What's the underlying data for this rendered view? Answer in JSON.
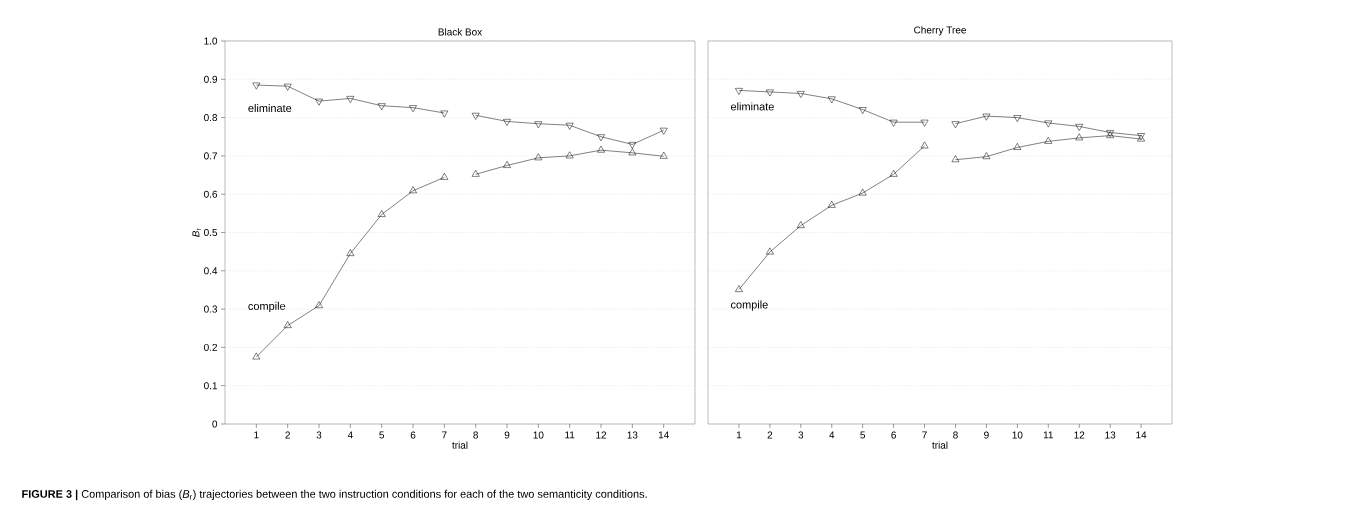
{
  "chart_data": [
    {
      "type": "line",
      "title": "Black Box",
      "xlabel": "trial",
      "ylabel": "*B*$_{r}$",
      "xlim": [
        0,
        15
      ],
      "xticks": [
        1,
        2,
        3,
        4,
        5,
        6,
        7,
        8,
        9,
        10,
        11,
        12,
        13,
        14
      ],
      "ylim": [
        0,
        1
      ],
      "yticks": [
        0,
        0.1,
        0.2,
        0.3,
        0.4,
        0.5,
        0.6,
        0.7,
        0.8,
        0.9,
        {
          "value": 1,
          "label": "1.0"
        }
      ],
      "grid": "y",
      "line_style": "solid",
      "series": [
        {
          "name": "eliminate",
          "color": "#000000",
          "marker": "triangle-down",
          "x": [
            1,
            2,
            3,
            4,
            5,
            6,
            7
          ],
          "values": [
            0.885,
            0.882,
            0.843,
            0.85,
            0.831,
            0.826,
            0.812
          ]
        },
        {
          "color": "#000000",
          "marker": "triangle-down",
          "x": [
            8,
            9,
            10,
            11,
            12,
            13,
            14
          ],
          "values": [
            0.806,
            0.79,
            0.784,
            0.78,
            0.75,
            0.73,
            0.767
          ]
        },
        {
          "name": "compile",
          "color": "#000000",
          "marker": "triangle",
          "x": [
            1,
            2,
            3,
            4,
            5,
            6,
            7
          ],
          "values": [
            0.175,
            0.257,
            0.309,
            0.445,
            0.547,
            0.609,
            0.644
          ]
        },
        {
          "color": "#000000",
          "marker": "triangle",
          "x": [
            8,
            9,
            10,
            11,
            12,
            13,
            14
          ],
          "values": [
            0.652,
            0.675,
            0.695,
            0.7,
            0.715,
            0.708,
            0.699
          ]
        }
      ],
      "annotations": [
        "**FIGURE 3 |** Comparison of bias (*B*$_{r}$) trajectories between the two instruction conditions for each of the two semanticity conditions."
      ]
    },
    {
      "type": "line",
      "title": "Cherry Tree",
      "xlabel": "trial",
      "xlim": [
        0,
        15
      ],
      "xticks": [
        1,
        2,
        3,
        4,
        5,
        6,
        7,
        8,
        9,
        10,
        11,
        12,
        13,
        14
      ],
      "ylim": [
        0,
        1
      ],
      "yticks": [
        0,
        0.1,
        0.2,
        0.3,
        0.4,
        0.5,
        0.6,
        0.7,
        0.8,
        0.9,
        1
      ],
      "grid": "y",
      "line_style": "solid",
      "tick_labels": "x",
      "series": [
        {
          "name": "eliminate",
          "color": "#000000",
          "marker": "triangle-down",
          "x": [
            1,
            2,
            3,
            4,
            5,
            6,
            7
          ],
          "values": [
            0.871,
            0.867,
            0.863,
            0.849,
            0.821,
            0.788,
            0.788
          ]
        },
        {
          "color": "#000000",
          "marker": "triangle-down",
          "x": [
            8,
            9,
            10,
            11,
            12,
            13,
            14
          ],
          "values": [
            0.784,
            0.804,
            0.8,
            0.786,
            0.777,
            0.761,
            0.753
          ]
        },
        {
          "name": "compile",
          "color": "#000000",
          "marker": "triangle",
          "x": [
            1,
            2,
            3,
            4,
            5,
            6,
            7
          ],
          "values": [
            0.351,
            0.449,
            0.518,
            0.571,
            0.603,
            0.652,
            0.726
          ]
        },
        {
          "color": "#000000",
          "marker": "triangle",
          "x": [
            8,
            9,
            10,
            11,
            12,
            13,
            14
          ],
          "values": [
            0.69,
            0.698,
            0.722,
            0.738,
            0.747,
            0.753,
            0.744
          ]
        }
      ]
    }
  ]
}
